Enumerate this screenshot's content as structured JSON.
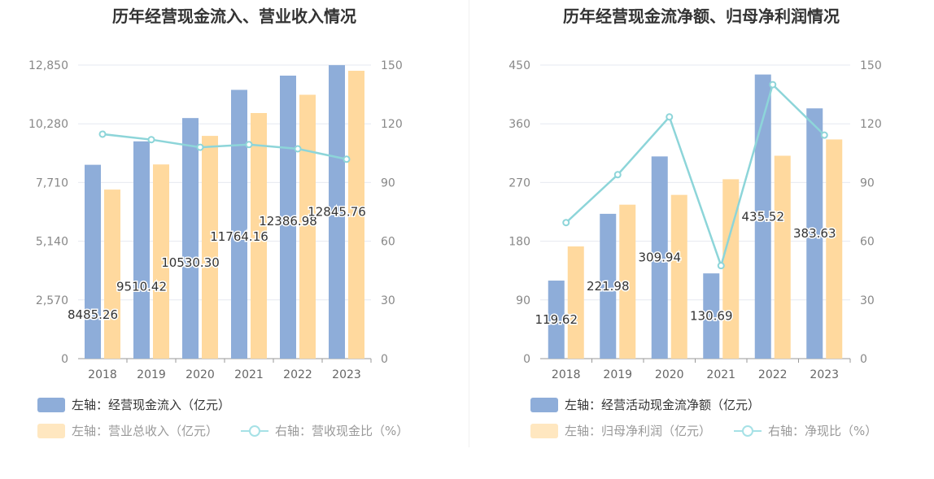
{
  "charts": [
    {
      "id": "left",
      "title": "历年经营现金流入、营业收入情况",
      "legend": {
        "bar1": "左轴：经营现金流入（亿元）",
        "bar2": "左轴：营业总收入（亿元）",
        "line": "右轴：营收现金比（%）"
      }
    },
    {
      "id": "right",
      "title": "历年经营现金流净额、归母净利润情况",
      "legend": {
        "bar1": "左轴：经营活动现金流净额（亿元）",
        "bar2": "左轴：归母净利润（亿元）",
        "line": "右轴：净现比（%）"
      }
    }
  ],
  "chart_data": [
    {
      "type": "bar",
      "title": "历年经营现金流入、营业收入情况",
      "categories": [
        "2018",
        "2019",
        "2020",
        "2021",
        "2022",
        "2023"
      ],
      "left_axis": {
        "ylim": [
          0,
          12850
        ],
        "ticks": [
          "0",
          "2,570",
          "5,140",
          "7,710",
          "10,280",
          "12,850"
        ]
      },
      "right_axis": {
        "ylim": [
          0,
          150
        ],
        "ticks": [
          "0",
          "30",
          "60",
          "90",
          "120",
          "150"
        ]
      },
      "series": [
        {
          "name": "左轴：经营现金流入（亿元）",
          "kind": "bar",
          "axis": "left",
          "color": "#8eadd9",
          "values": [
            8485.26,
            9510.42,
            10530.3,
            11764.16,
            12386.98,
            12845.76
          ],
          "labels": [
            "8485.26",
            "9510.42",
            "10530.30",
            "11764.16",
            "12386.98",
            "12845.76"
          ]
        },
        {
          "name": "左轴：营业总收入（亿元）",
          "kind": "bar",
          "axis": "left",
          "color": "#ffd99e",
          "values": [
            7400,
            8500,
            9750,
            10750,
            11550,
            12600
          ]
        },
        {
          "name": "右轴：营收现金比（%）",
          "kind": "line",
          "axis": "right",
          "color": "#8dd5d9",
          "values": [
            114.7,
            111.9,
            108.0,
            109.4,
            107.2,
            101.9
          ]
        }
      ],
      "grid": true,
      "legend_position": "bottom-left"
    },
    {
      "type": "bar",
      "title": "历年经营现金流净额、归母净利润情况",
      "categories": [
        "2018",
        "2019",
        "2020",
        "2021",
        "2022",
        "2023"
      ],
      "left_axis": {
        "ylim": [
          0,
          450
        ],
        "ticks": [
          "0",
          "90",
          "180",
          "270",
          "360",
          "450"
        ]
      },
      "right_axis": {
        "ylim": [
          0,
          150
        ],
        "ticks": [
          "0",
          "30",
          "60",
          "90",
          "120",
          "150"
        ]
      },
      "series": [
        {
          "name": "左轴：经营活动现金流净额（亿元）",
          "kind": "bar",
          "axis": "left",
          "color": "#8eadd9",
          "values": [
            119.62,
            221.98,
            309.94,
            130.69,
            435.52,
            383.63
          ],
          "labels": [
            "119.62",
            "221.98",
            "309.94",
            "130.69",
            "435.52",
            "383.63"
          ]
        },
        {
          "name": "左轴：归母净利润（亿元）",
          "kind": "bar",
          "axis": "left",
          "color": "#ffd99e",
          "values": [
            172,
            236,
            251,
            275,
            311,
            336
          ]
        },
        {
          "name": "右轴：净现比（%）",
          "kind": "line",
          "axis": "right",
          "color": "#8dd5d9",
          "values": [
            69.5,
            94.0,
            123.5,
            47.5,
            140.0,
            114.2
          ]
        }
      ],
      "grid": true,
      "legend_position": "bottom-left"
    }
  ]
}
